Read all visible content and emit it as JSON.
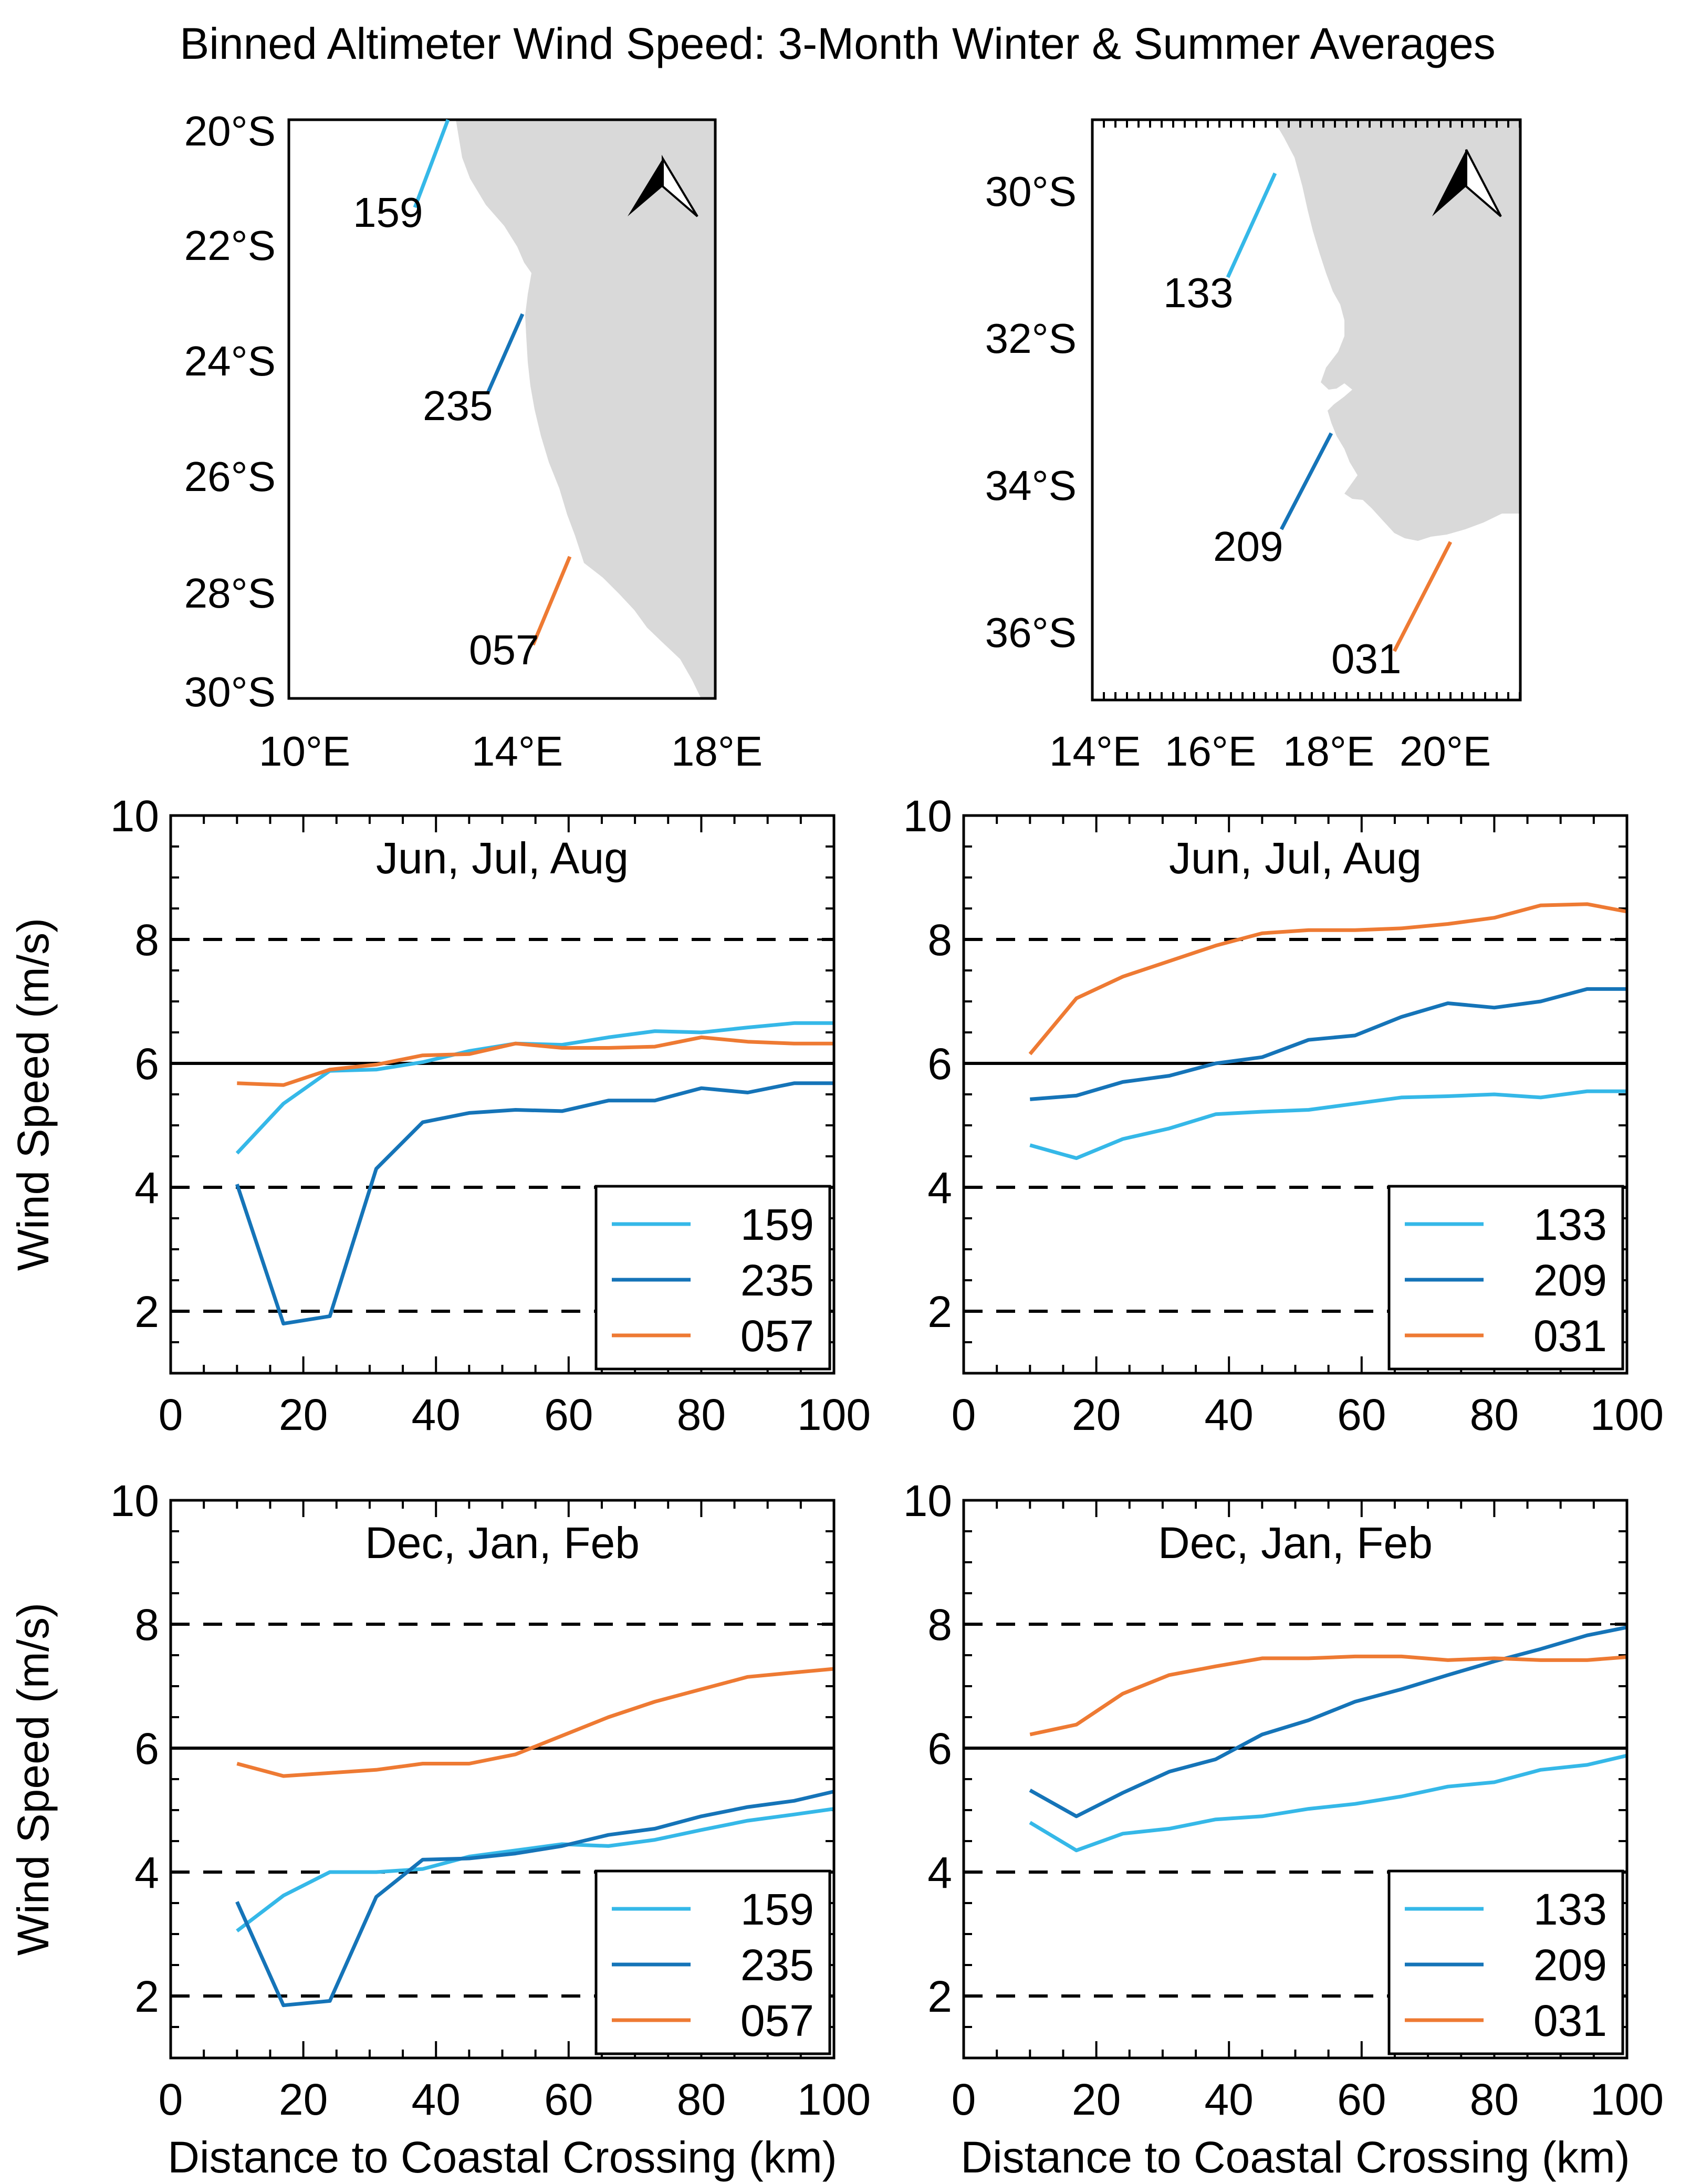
{
  "title": "Binned Altimeter Wind Speed: 3-Month Winter & Summer Averages",
  "colors": {
    "light_blue": "#35b8e8",
    "dark_blue": "#1574b8",
    "orange": "#ee7a33",
    "land": "#d9d9d9"
  },
  "maps": [
    {
      "name": "namibia",
      "lat_ticks": [
        "20°S",
        "22°S",
        "24°S",
        "26°S",
        "28°S",
        "30°S"
      ],
      "lon_ticks": [
        "10°E",
        "14°E",
        "18°E"
      ],
      "tracks": [
        {
          "label": "159",
          "color": "#35b8e8"
        },
        {
          "label": "235",
          "color": "#1574b8"
        },
        {
          "label": "057",
          "color": "#ee7a33"
        }
      ]
    },
    {
      "name": "south_africa",
      "lat_ticks": [
        "30°S",
        "32°S",
        "34°S",
        "36°S"
      ],
      "lon_ticks": [
        "14°E",
        "16°E",
        "18°E",
        "20°E"
      ],
      "tracks": [
        {
          "label": "133",
          "color": "#35b8e8"
        },
        {
          "label": "209",
          "color": "#1574b8"
        },
        {
          "label": "031",
          "color": "#ee7a33"
        }
      ]
    }
  ],
  "chart_data": [
    {
      "type": "line",
      "panel": "winter_namibia",
      "title": "Jun, Jul, Aug",
      "xlabel": "",
      "ylabel": "Wind Speed (m/s)",
      "xlim": [
        0,
        100
      ],
      "ylim": [
        1,
        10
      ],
      "xticks": [
        0,
        20,
        40,
        60,
        80,
        100
      ],
      "yticks": [
        2,
        4,
        6,
        8,
        10
      ],
      "dashed_lines": [
        2,
        4,
        8
      ],
      "solid_lines": [
        6
      ],
      "legend": "bottom-right",
      "x": [
        10,
        17,
        24,
        31,
        38,
        45,
        52,
        59,
        66,
        73,
        80,
        87,
        94,
        100
      ],
      "series": [
        {
          "name": "159",
          "color": "#35b8e8",
          "values": [
            4.55,
            5.35,
            5.88,
            5.9,
            6.02,
            6.2,
            6.32,
            6.3,
            6.42,
            6.52,
            6.5,
            6.58,
            6.65,
            6.65
          ]
        },
        {
          "name": "235",
          "color": "#1574b8",
          "values": [
            4.05,
            1.8,
            1.92,
            4.3,
            5.05,
            5.2,
            5.25,
            5.23,
            5.4,
            5.4,
            5.6,
            5.53,
            5.68,
            5.68
          ]
        },
        {
          "name": "057",
          "color": "#ee7a33",
          "values": [
            5.68,
            5.65,
            5.9,
            5.98,
            6.13,
            6.15,
            6.32,
            6.25,
            6.25,
            6.27,
            6.42,
            6.35,
            6.32,
            6.32
          ]
        }
      ]
    },
    {
      "type": "line",
      "panel": "winter_south_africa",
      "title": "Jun, Jul, Aug",
      "xlabel": "",
      "ylabel": "",
      "xlim": [
        0,
        100
      ],
      "ylim": [
        1,
        10
      ],
      "xticks": [
        0,
        20,
        40,
        60,
        80,
        100
      ],
      "yticks": [
        2,
        4,
        6,
        8,
        10
      ],
      "dashed_lines": [
        2,
        4,
        8
      ],
      "solid_lines": [
        6
      ],
      "legend": "bottom-right",
      "x": [
        10,
        17,
        24,
        31,
        38,
        45,
        52,
        59,
        66,
        73,
        80,
        87,
        94,
        100
      ],
      "series": [
        {
          "name": "133",
          "color": "#35b8e8",
          "values": [
            4.68,
            4.47,
            4.78,
            4.95,
            5.18,
            5.22,
            5.25,
            5.35,
            5.45,
            5.47,
            5.5,
            5.45,
            5.55,
            5.55
          ]
        },
        {
          "name": "209",
          "color": "#1574b8",
          "values": [
            5.42,
            5.48,
            5.7,
            5.8,
            6.0,
            6.1,
            6.38,
            6.45,
            6.75,
            6.97,
            6.9,
            7.0,
            7.2,
            7.2
          ]
        },
        {
          "name": "031",
          "color": "#ee7a33",
          "values": [
            6.15,
            7.05,
            7.4,
            7.65,
            7.9,
            8.1,
            8.15,
            8.15,
            8.18,
            8.25,
            8.35,
            8.55,
            8.57,
            8.45
          ]
        }
      ]
    },
    {
      "type": "line",
      "panel": "summer_namibia",
      "title": "Dec, Jan, Feb",
      "xlabel": "Distance to Coastal Crossing (km)",
      "ylabel": "Wind Speed (m/s)",
      "xlim": [
        0,
        100
      ],
      "ylim": [
        1,
        10
      ],
      "xticks": [
        0,
        20,
        40,
        60,
        80,
        100
      ],
      "yticks": [
        2,
        4,
        6,
        8,
        10
      ],
      "dashed_lines": [
        2,
        4,
        8
      ],
      "solid_lines": [
        6
      ],
      "legend": "bottom-right",
      "x": [
        10,
        17,
        24,
        31,
        38,
        45,
        52,
        59,
        66,
        73,
        80,
        87,
        94,
        100
      ],
      "series": [
        {
          "name": "159",
          "color": "#35b8e8",
          "values": [
            3.05,
            3.62,
            4.0,
            4.0,
            4.05,
            4.25,
            4.35,
            4.45,
            4.42,
            4.52,
            4.68,
            4.83,
            4.93,
            5.02
          ]
        },
        {
          "name": "235",
          "color": "#1574b8",
          "values": [
            3.52,
            1.85,
            1.92,
            3.6,
            4.2,
            4.22,
            4.3,
            4.42,
            4.6,
            4.7,
            4.9,
            5.05,
            5.15,
            5.3
          ]
        },
        {
          "name": "057",
          "color": "#ee7a33",
          "values": [
            5.75,
            5.55,
            5.6,
            5.65,
            5.75,
            5.75,
            5.9,
            6.2,
            6.5,
            6.75,
            6.95,
            7.15,
            7.22,
            7.28
          ]
        }
      ]
    },
    {
      "type": "line",
      "panel": "summer_south_africa",
      "title": "Dec, Jan, Feb",
      "xlabel": "Distance to Coastal Crossing (km)",
      "ylabel": "",
      "xlim": [
        0,
        100
      ],
      "ylim": [
        1,
        10
      ],
      "xticks": [
        0,
        20,
        40,
        60,
        80,
        100
      ],
      "yticks": [
        2,
        4,
        6,
        8,
        10
      ],
      "dashed_lines": [
        2,
        4,
        8
      ],
      "solid_lines": [
        6
      ],
      "legend": "bottom-right",
      "x": [
        10,
        17,
        24,
        31,
        38,
        45,
        52,
        59,
        66,
        73,
        80,
        87,
        94,
        100
      ],
      "series": [
        {
          "name": "133",
          "color": "#35b8e8",
          "values": [
            4.8,
            4.35,
            4.62,
            4.7,
            4.85,
            4.9,
            5.02,
            5.1,
            5.22,
            5.38,
            5.45,
            5.65,
            5.73,
            5.88
          ]
        },
        {
          "name": "209",
          "color": "#1574b8",
          "values": [
            5.32,
            4.9,
            5.28,
            5.62,
            5.82,
            6.22,
            6.45,
            6.75,
            6.95,
            7.18,
            7.4,
            7.6,
            7.82,
            7.95
          ]
        },
        {
          "name": "031",
          "color": "#ee7a33",
          "values": [
            6.22,
            6.38,
            6.88,
            7.18,
            7.32,
            7.45,
            7.45,
            7.48,
            7.48,
            7.42,
            7.45,
            7.42,
            7.42,
            7.47
          ]
        }
      ]
    }
  ]
}
